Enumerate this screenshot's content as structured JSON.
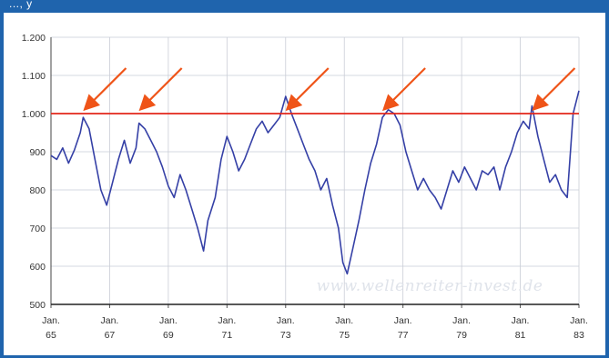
{
  "header": {
    "partial_text": "..., y"
  },
  "watermark": "www.wellenreiter-invest.de",
  "colors": {
    "line": "#3540a6",
    "reference": "#e3261a",
    "arrow": "#ef5418",
    "frame": "#1f64ad",
    "grid": "#c9cdd6"
  },
  "chart_data": {
    "type": "line",
    "title": "",
    "xlabel": "",
    "ylabel": "",
    "ylim": [
      500,
      1200
    ],
    "yticks": [
      {
        "value": 1200,
        "label": "1.200"
      },
      {
        "value": 1100,
        "label": "1.100"
      },
      {
        "value": 1000,
        "label": "1.000"
      },
      {
        "value": 900,
        "label": "900"
      },
      {
        "value": 800,
        "label": "800"
      },
      {
        "value": 700,
        "label": "700"
      },
      {
        "value": 600,
        "label": "600"
      },
      {
        "value": 500,
        "label": "500"
      }
    ],
    "xlim": [
      1965.0,
      1983.0
    ],
    "xticks": [
      {
        "value": 1965,
        "month": "Jan.",
        "year": "65"
      },
      {
        "value": 1967,
        "month": "Jan.",
        "year": "67"
      },
      {
        "value": 1969,
        "month": "Jan.",
        "year": "69"
      },
      {
        "value": 1971,
        "month": "Jan.",
        "year": "71"
      },
      {
        "value": 1973,
        "month": "Jan.",
        "year": "73"
      },
      {
        "value": 1975,
        "month": "Jan.",
        "year": "75"
      },
      {
        "value": 1977,
        "month": "Jan.",
        "year": "77"
      },
      {
        "value": 1979,
        "month": "Jan.",
        "year": "79"
      },
      {
        "value": 1981,
        "month": "Jan.",
        "year": "81"
      },
      {
        "value": 1983,
        "month": "Jan.",
        "year": "83"
      }
    ],
    "grid": true,
    "reference_line": {
      "value": 1000
    },
    "highlighted_peaks": [
      1966.1,
      1968.0,
      1973.0,
      1976.3,
      1981.4
    ],
    "series": [
      {
        "x": [
          1965.0,
          1965.2,
          1965.4,
          1965.6,
          1965.8,
          1966.0,
          1966.1,
          1966.3,
          1966.5,
          1966.7,
          1966.9,
          1967.1,
          1967.3,
          1967.5,
          1967.7,
          1967.9,
          1968.0,
          1968.2,
          1968.4,
          1968.6,
          1968.8,
          1969.0,
          1969.2,
          1969.4,
          1969.6,
          1969.8,
          1970.0,
          1970.2,
          1970.35,
          1970.6,
          1970.8,
          1971.0,
          1971.2,
          1971.4,
          1971.6,
          1971.8,
          1972.0,
          1972.2,
          1972.4,
          1972.6,
          1972.8,
          1973.0,
          1973.2,
          1973.4,
          1973.6,
          1973.8,
          1974.0,
          1974.2,
          1974.4,
          1974.6,
          1974.8,
          1974.95,
          1975.1,
          1975.3,
          1975.5,
          1975.7,
          1975.9,
          1976.1,
          1976.3,
          1976.5,
          1976.7,
          1976.9,
          1977.1,
          1977.3,
          1977.5,
          1977.7,
          1977.9,
          1978.1,
          1978.3,
          1978.5,
          1978.7,
          1978.9,
          1979.1,
          1979.3,
          1979.5,
          1979.7,
          1979.9,
          1980.1,
          1980.3,
          1980.5,
          1980.7,
          1980.9,
          1981.1,
          1981.3,
          1981.4,
          1981.6,
          1981.8,
          1982.0,
          1982.2,
          1982.4,
          1982.6,
          1982.8,
          1983.0
        ],
        "y": [
          890,
          880,
          910,
          870,
          905,
          950,
          990,
          960,
          880,
          800,
          760,
          820,
          880,
          930,
          870,
          910,
          975,
          960,
          930,
          900,
          860,
          810,
          780,
          840,
          800,
          750,
          700,
          640,
          720,
          780,
          880,
          940,
          900,
          850,
          880,
          920,
          960,
          980,
          950,
          970,
          990,
          1045,
          1000,
          960,
          920,
          880,
          850,
          800,
          830,
          760,
          700,
          610,
          580,
          650,
          720,
          800,
          870,
          920,
          990,
          1010,
          1000,
          970,
          900,
          850,
          800,
          830,
          800,
          780,
          750,
          800,
          850,
          820,
          860,
          830,
          800,
          850,
          840,
          860,
          800,
          860,
          900,
          950,
          980,
          960,
          1020,
          940,
          880,
          820,
          840,
          800,
          780,
          1000,
          1060
        ]
      }
    ]
  }
}
